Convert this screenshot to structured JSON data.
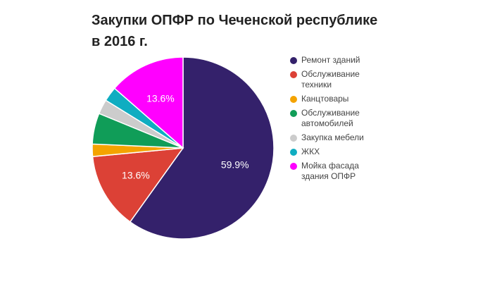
{
  "chart_data": {
    "type": "pie",
    "title": "Закупки ОПФР по Чеченской республике в 2016 г.",
    "slices": [
      {
        "label": "Ремонт зданий",
        "value": 59.9,
        "color": "#34216b",
        "data_label": "59.9%"
      },
      {
        "label": "Обслуживание\nтехники",
        "value": 13.6,
        "color": "#dc4136",
        "data_label": "13.6%"
      },
      {
        "label": "Канцтовары",
        "value": 2.2,
        "color": "#f4a300",
        "data_label": ""
      },
      {
        "label": "Обслуживание\nавтомобилей",
        "value": 5.5,
        "color": "#109d58",
        "data_label": ""
      },
      {
        "label": "Закупка мебели",
        "value": 2.6,
        "color": "#cccccc",
        "data_label": ""
      },
      {
        "label": "ЖКХ",
        "value": 2.6,
        "color": "#0fadc1",
        "data_label": ""
      },
      {
        "label": "Мойка фасада\nздания ОПФР",
        "value": 13.6,
        "color": "#ff00ff",
        "data_label": "13.6%"
      }
    ],
    "legend_position": "right"
  }
}
